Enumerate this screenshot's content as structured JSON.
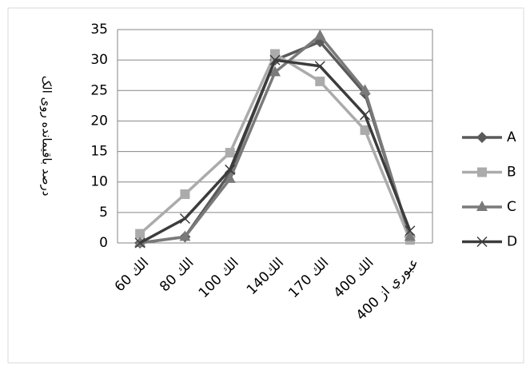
{
  "chart_data": {
    "type": "line",
    "y_label": "درصد باقیمانده روی الک",
    "categories": [
      "الك 60",
      "الك 80",
      "الك 100",
      "الك140",
      "الك 170",
      "الك 400",
      "عبوري از 400"
    ],
    "series": [
      {
        "name": "A",
        "color": "#5a5a5a",
        "marker": "diamond",
        "values": [
          0,
          1,
          11.5,
          30,
          33,
          24.5,
          1
        ]
      },
      {
        "name": "B",
        "color": "#ababab",
        "marker": "square",
        "values": [
          1.5,
          8,
          14.8,
          31,
          26.5,
          18.5,
          0.5
        ]
      },
      {
        "name": "C",
        "color": "#7a7a7a",
        "marker": "triangle",
        "values": [
          0,
          1,
          10.5,
          28,
          34,
          25,
          1
        ]
      },
      {
        "name": "D",
        "color": "#3c3c3c",
        "marker": "x",
        "values": [
          0,
          4,
          12,
          30,
          29,
          21,
          2
        ]
      }
    ],
    "ylim": [
      0,
      35
    ],
    "yticks": [
      0,
      5,
      10,
      15,
      20,
      25,
      30,
      35
    ],
    "grid": true
  }
}
